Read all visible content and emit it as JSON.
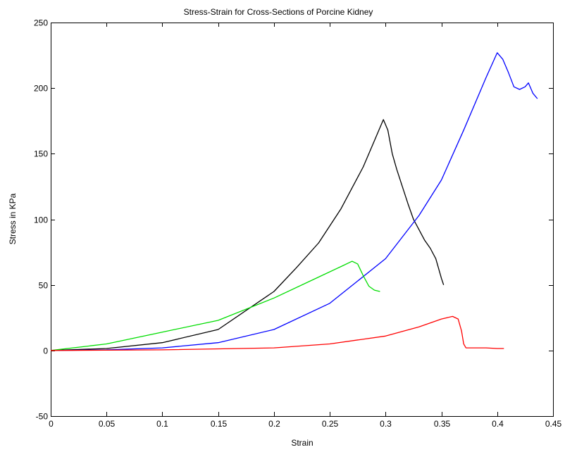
{
  "chart_data": {
    "type": "line",
    "title": "Stress-Strain for Cross-Sections of Porcine Kidney",
    "xlabel": "Strain",
    "ylabel": "Stress in KPa",
    "xlim": [
      0,
      0.45
    ],
    "ylim": [
      -50,
      250
    ],
    "xticks": [
      0,
      0.05,
      0.1,
      0.15,
      0.2,
      0.25,
      0.3,
      0.35,
      0.4,
      0.45
    ],
    "xtick_labels": [
      "0",
      "0.05",
      "0.1",
      "0.15",
      "0.2",
      "0.25",
      "0.3",
      "0.35",
      "0.4",
      "0.45"
    ],
    "yticks": [
      -50,
      0,
      50,
      100,
      150,
      200,
      250
    ],
    "ytick_labels": [
      "-50",
      "0",
      "50",
      "100",
      "150",
      "200",
      "250"
    ],
    "grid": false,
    "legend": "none",
    "series": [
      {
        "color": "#000000",
        "x": [
          0,
          0.05,
          0.1,
          0.15,
          0.2,
          0.22,
          0.24,
          0.26,
          0.28,
          0.29,
          0.298,
          0.302,
          0.306,
          0.31,
          0.315,
          0.32,
          0.325,
          0.33,
          0.335,
          0.34,
          0.345,
          0.35,
          0.352
        ],
        "y": [
          0,
          1.5,
          6,
          16,
          45,
          63,
          82,
          108,
          140,
          160,
          176,
          168,
          150,
          138,
          125,
          112,
          100,
          92,
          84,
          78,
          70,
          55,
          50
        ]
      },
      {
        "color": "#0000ff",
        "x": [
          0,
          0.05,
          0.1,
          0.15,
          0.2,
          0.25,
          0.3,
          0.33,
          0.35,
          0.37,
          0.39,
          0.4,
          0.405,
          0.41,
          0.415,
          0.42,
          0.425,
          0.428,
          0.432,
          0.436
        ],
        "y": [
          0,
          0.5,
          2,
          6,
          16,
          36,
          70,
          103,
          130,
          168,
          208,
          227,
          222,
          212,
          201,
          199,
          201,
          204,
          196,
          192
        ]
      },
      {
        "color": "#00dd00",
        "x": [
          0,
          0.05,
          0.1,
          0.15,
          0.2,
          0.24,
          0.26,
          0.27,
          0.275,
          0.28,
          0.285,
          0.29,
          0.295
        ],
        "y": [
          0,
          5,
          14,
          23,
          40,
          56,
          64,
          68,
          66,
          57,
          49,
          46,
          45
        ]
      },
      {
        "color": "#ff0000",
        "x": [
          0,
          0.1,
          0.2,
          0.25,
          0.3,
          0.33,
          0.35,
          0.36,
          0.365,
          0.368,
          0.37,
          0.372,
          0.38,
          0.39,
          0.4,
          0.406
        ],
        "y": [
          0,
          0.5,
          2,
          5,
          11,
          18,
          24,
          26,
          24,
          15,
          5,
          2,
          2,
          2,
          1.5,
          1.5
        ]
      }
    ]
  }
}
